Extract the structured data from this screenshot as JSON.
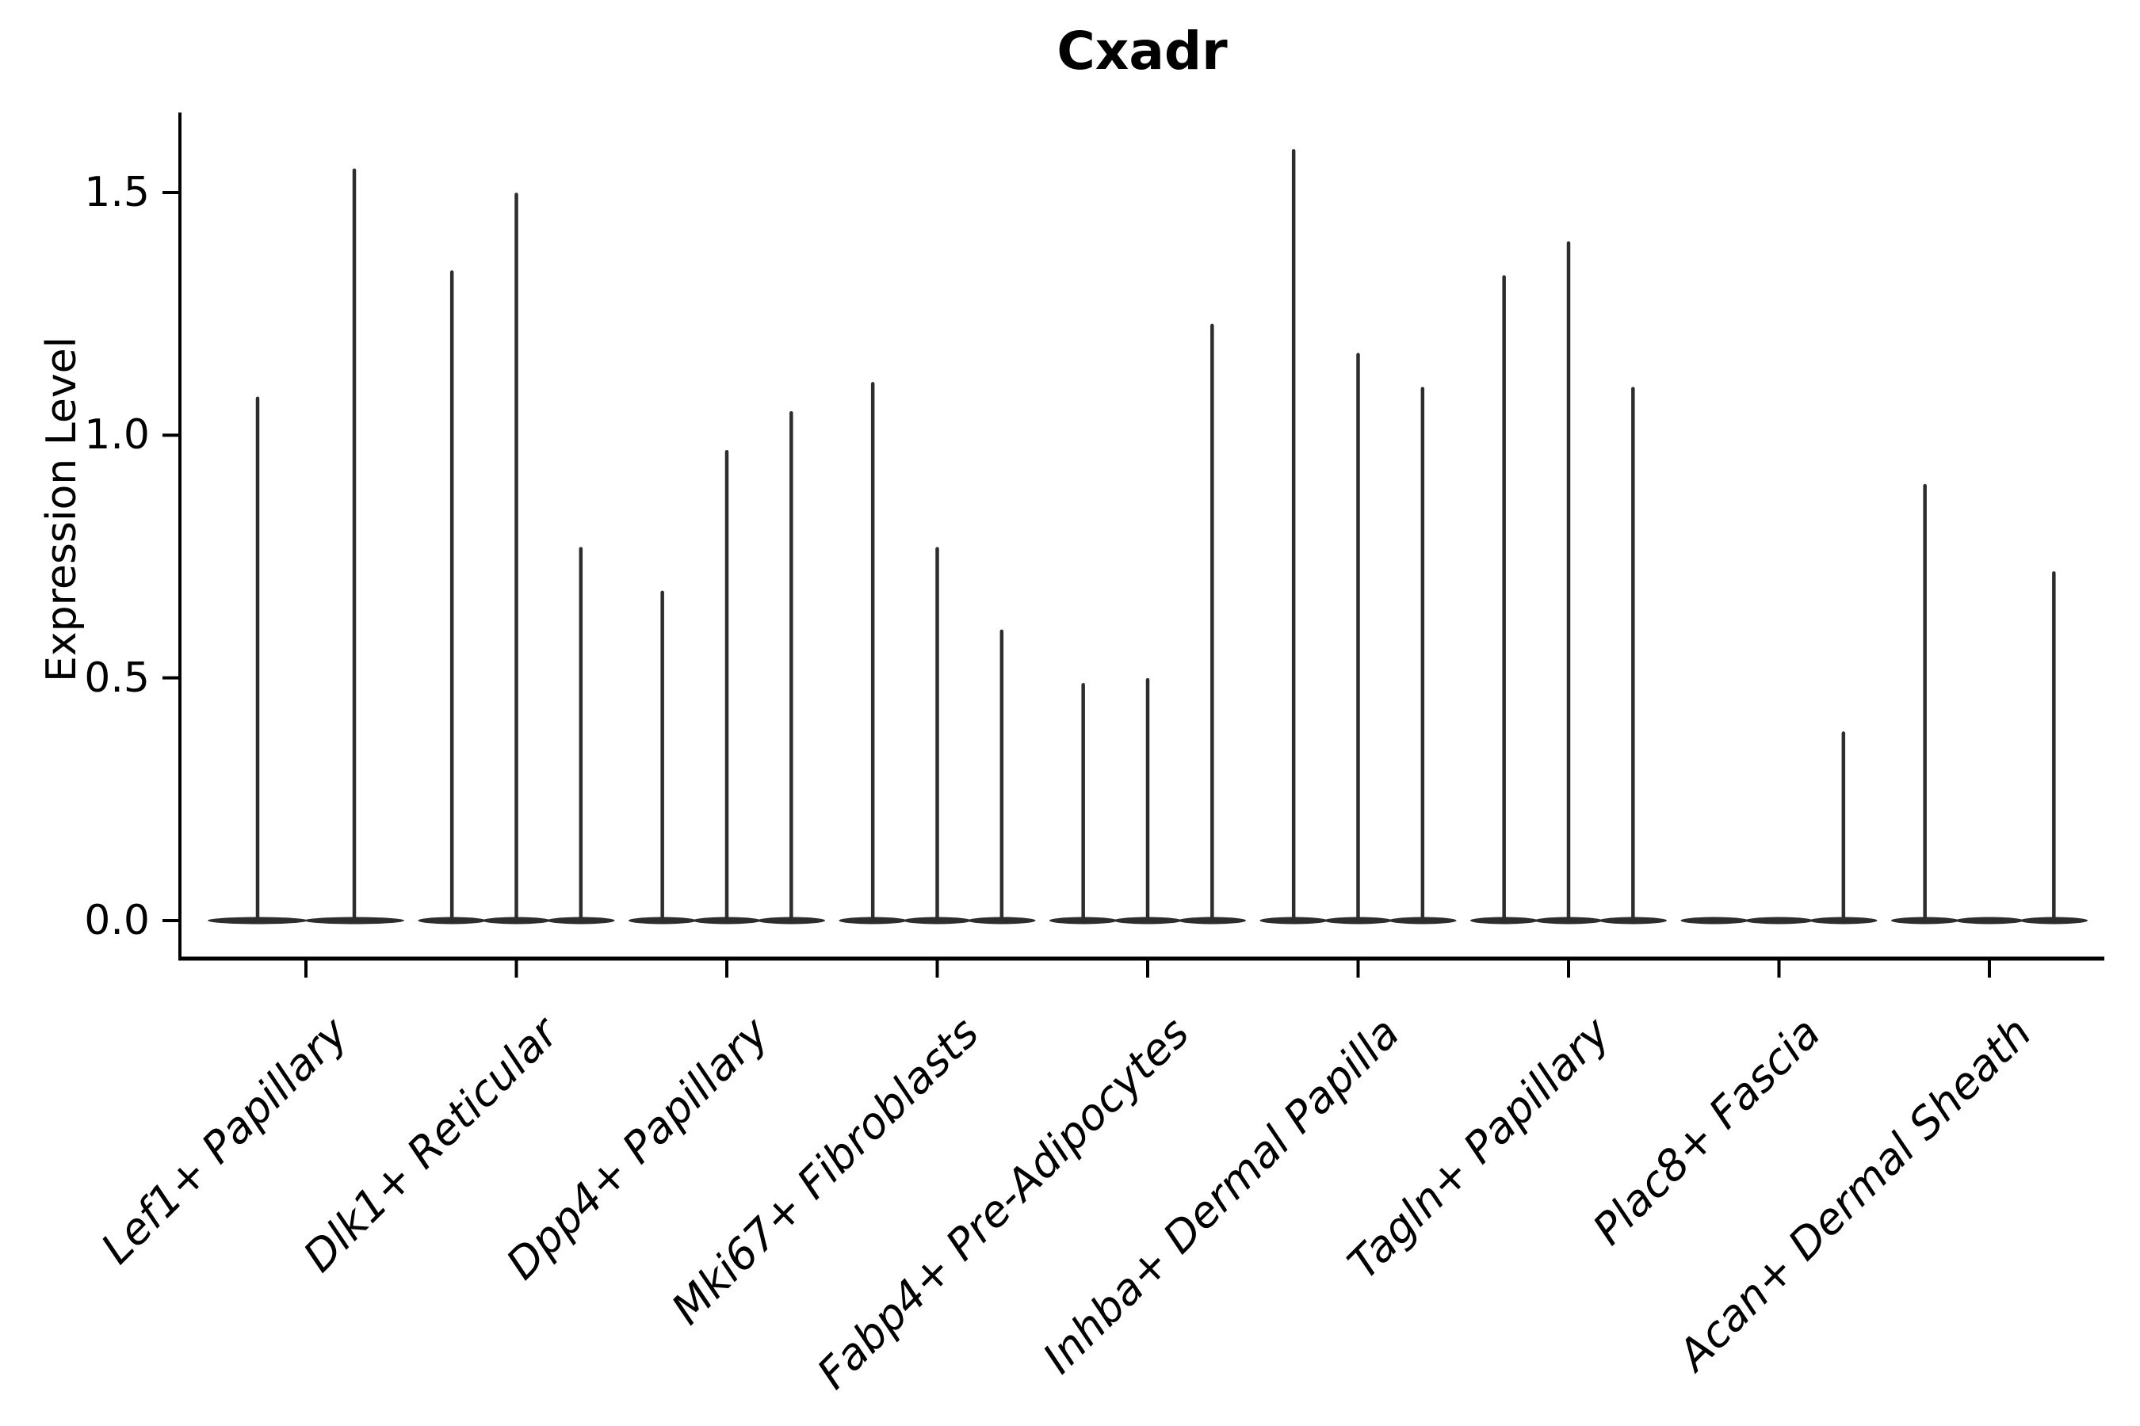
{
  "chart_data": {
    "type": "violin",
    "title": "Cxadr",
    "xlabel": "",
    "ylabel": "Expression Level",
    "ylim": [
      -0.08,
      1.65
    ],
    "yticks": [
      0.0,
      0.5,
      1.0,
      1.5
    ],
    "ytick_labels": [
      "0.0",
      "0.5",
      "1.0",
      "1.5"
    ],
    "categories": [
      "Lef1+ Papillary",
      "Dlk1+ Reticular",
      "Dpp4+ Papillary",
      "Mki67+ Fibroblasts",
      "Fabp4+ Pre-Adipocytes",
      "Inhba+ Dermal Papilla",
      "Tagln+ Papillary",
      "Plac8+ Fascia",
      "Acan+ Dermal Sheath"
    ],
    "series": [
      {
        "category": "Lef1+ Papillary",
        "violin_maxima": [
          1.08,
          1.55
        ]
      },
      {
        "category": "Dlk1+ Reticular",
        "violin_maxima": [
          1.34,
          1.5,
          0.77
        ]
      },
      {
        "category": "Dpp4+ Papillary",
        "violin_maxima": [
          0.68,
          0.97,
          1.05
        ]
      },
      {
        "category": "Mki67+ Fibroblasts",
        "violin_maxima": [
          1.11,
          0.77,
          0.6
        ]
      },
      {
        "category": "Fabp4+ Pre-Adipocytes",
        "violin_maxima": [
          0.49,
          0.5,
          1.23
        ]
      },
      {
        "category": "Inhba+ Dermal Papilla",
        "violin_maxima": [
          1.59,
          1.17,
          1.1
        ]
      },
      {
        "category": "Tagln+ Papillary",
        "violin_maxima": [
          1.33,
          1.4,
          1.1
        ]
      },
      {
        "category": "Plac8+ Fascia",
        "violin_maxima": [
          0.0,
          0.0,
          0.39
        ]
      },
      {
        "category": "Acan+ Dermal Sheath",
        "violin_maxima": [
          0.9,
          0.0,
          0.72
        ]
      }
    ],
    "layout": {
      "grid": "off",
      "legend": "none",
      "distribution_shape": "mass concentrated at 0: wide flat base with thin spike rising to each violin's maximum",
      "violins_fill_group_width": true
    },
    "colors": {
      "violin": "#2d2d2d",
      "axis": "#000000",
      "background": "#ffffff"
    }
  }
}
